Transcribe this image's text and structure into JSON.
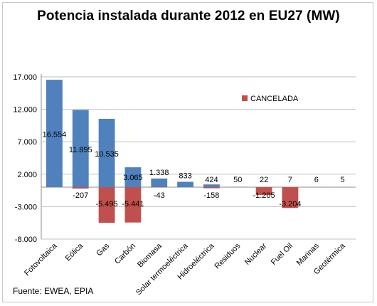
{
  "chart_data": {
    "type": "bar",
    "title": "Potencia instalada durante 2012 en EU27 (MW)",
    "source": "Fuente: EWEA, EPIA",
    "categories": [
      "Fotovoltaica",
      "Eólica",
      "Gas",
      "Carbón",
      "Biomasa",
      "Solar termoeléctrica",
      "Hidroeléctrica",
      "Residuos",
      "Nuclear",
      "Fuel Oil",
      "Marinas",
      "Geotérmica"
    ],
    "series": [
      {
        "color": "#4f81bd",
        "values": [
          16554,
          11895,
          10535,
          3065,
          1338,
          833,
          424,
          50,
          22,
          7,
          6,
          5
        ],
        "labels": [
          "16.554",
          "11.895",
          "10.535",
          "3.065",
          "1.338",
          "833",
          "424",
          "50",
          "22",
          "7",
          "6",
          "5"
        ]
      },
      {
        "name": "CANCELADA",
        "color": "#c0504d",
        "values": [
          0,
          -207,
          -5495,
          -5441,
          -43,
          0,
          -158,
          0,
          -1205,
          -3204,
          0,
          0
        ],
        "labels": [
          "",
          "-207",
          "-5.495",
          "-5.441",
          "-43",
          "",
          "-158",
          "",
          "-1.205",
          "-3.204",
          "",
          ""
        ]
      }
    ],
    "yticks": [
      -8000,
      -3000,
      2000,
      7000,
      12000,
      17000
    ],
    "ytick_labels": [
      "-8.000",
      "-3.000",
      "2.000",
      "7.000",
      "12.000",
      "17.000"
    ],
    "ylim": [
      -8000,
      17000
    ],
    "grid": true,
    "legend": "upper-right, inside plot"
  }
}
